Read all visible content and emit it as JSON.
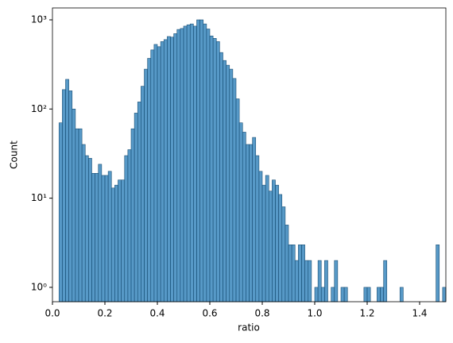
{
  "chart_data": {
    "type": "histogram",
    "xlabel": "ratio",
    "ylabel": "Count",
    "color": "#1f77b4",
    "edgecolor": "#1a4f75",
    "yscale": "log",
    "bins": [
      0.025,
      0.0375,
      0.05,
      0.0625,
      0.075,
      0.0875,
      0.1,
      0.1125,
      0.125,
      0.1375,
      0.15,
      0.1625,
      0.175,
      0.1875,
      0.2,
      0.2125,
      0.225,
      0.2375,
      0.25,
      0.2625,
      0.275,
      0.2875,
      0.3,
      0.3125,
      0.325,
      0.3375,
      0.35,
      0.3625,
      0.375,
      0.3875,
      0.4,
      0.4125,
      0.425,
      0.4375,
      0.45,
      0.4625,
      0.475,
      0.4875,
      0.5,
      0.5125,
      0.525,
      0.5375,
      0.55,
      0.5625,
      0.575,
      0.5875,
      0.6,
      0.6125,
      0.625,
      0.6375,
      0.65,
      0.6625,
      0.675,
      0.6875,
      0.7,
      0.7125,
      0.725,
      0.7375,
      0.75,
      0.7625,
      0.775,
      0.7875,
      0.8,
      0.8125,
      0.825,
      0.8375,
      0.85,
      0.8625,
      0.875,
      0.8875,
      0.9,
      0.9125,
      0.925,
      0.9375,
      0.95,
      0.9625,
      0.975,
      0.9875,
      1.0,
      1.0125,
      1.025,
      1.0375,
      1.05,
      1.0625,
      1.075,
      1.0875,
      1.1,
      1.1125,
      1.125,
      1.1375,
      1.15,
      1.1625,
      1.175,
      1.1875,
      1.2,
      1.2125,
      1.225,
      1.2375,
      1.25,
      1.2625,
      1.275,
      1.2875,
      1.3,
      1.3125,
      1.325,
      1.3375,
      1.35,
      1.3625,
      1.375,
      1.3875,
      1.4,
      1.4125,
      1.425,
      1.4375,
      1.45,
      1.4625,
      1.475,
      1.4875,
      1.5
    ],
    "values": [
      70,
      165,
      215,
      160,
      100,
      60,
      60,
      40,
      30,
      28,
      19,
      19,
      24,
      18,
      18,
      20,
      13,
      14,
      16,
      16,
      30,
      35,
      60,
      90,
      120,
      180,
      280,
      370,
      460,
      530,
      500,
      570,
      600,
      650,
      640,
      700,
      780,
      800,
      850,
      880,
      900,
      850,
      1000,
      1000,
      900,
      790,
      660,
      620,
      570,
      430,
      350,
      310,
      280,
      220,
      130,
      70,
      55,
      40,
      40,
      48,
      30,
      20,
      14,
      18,
      12,
      16,
      14,
      11,
      8,
      5,
      3,
      3,
      2,
      3,
      3,
      2,
      2,
      0,
      1,
      2,
      1,
      2,
      0,
      1,
      2,
      0,
      1,
      1,
      0,
      0,
      0,
      0,
      0,
      1,
      1,
      0,
      0,
      1,
      1,
      2,
      0,
      0,
      0,
      0,
      1,
      0,
      0,
      0,
      0,
      0,
      0,
      0,
      0,
      0,
      0,
      3,
      0,
      1
    ],
    "xlim": [
      0,
      1.5
    ],
    "xticks": [
      {
        "value": 0,
        "label": "0.0"
      },
      0.2,
      0.4,
      0.6,
      0.8,
      {
        "value": 1,
        "label": "1.0"
      },
      1.2,
      1.4
    ],
    "ylim": [
      0.69,
      1360
    ],
    "yticks": [
      {
        "value": 1,
        "label": "10⁰"
      },
      {
        "value": 10,
        "label": "10¹"
      },
      {
        "value": 100,
        "label": "10²"
      },
      {
        "value": 1000,
        "label": "10³"
      }
    ]
  }
}
